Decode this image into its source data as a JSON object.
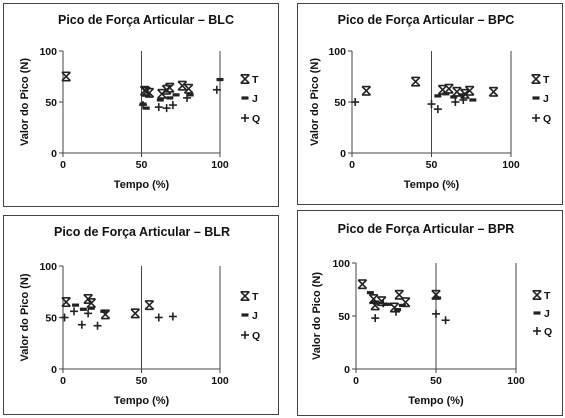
{
  "chart_data": [
    {
      "type": "scatter",
      "title": "Pico de Força Articular – BLC",
      "xlabel": "Tempo (%)",
      "ylabel": "Valor do Pico (N)",
      "xlim": [
        0,
        100
      ],
      "ylim": [
        0,
        100
      ],
      "xticks": [
        "0",
        "50",
        "100"
      ],
      "yticks": [
        "0",
        "50",
        "100"
      ],
      "legend": "right",
      "series": [
        {
          "name": "T",
          "marker": "x",
          "points": [
            [
              2,
              75
            ],
            [
              52,
              61
            ],
            [
              53,
              60
            ],
            [
              55,
              59
            ],
            [
              63,
              58
            ],
            [
              66,
              62
            ],
            [
              68,
              64
            ],
            [
              76,
              66
            ],
            [
              80,
              63
            ]
          ]
        },
        {
          "name": "J",
          "marker": "dash",
          "points": [
            [
              51,
              48
            ],
            [
              53,
              44
            ],
            [
              62,
              52
            ],
            [
              68,
              54
            ],
            [
              72,
              57
            ],
            [
              81,
              57
            ],
            [
              100,
              72
            ]
          ]
        },
        {
          "name": "Q",
          "marker": "+",
          "points": [
            [
              51,
              47
            ],
            [
              61,
              45
            ],
            [
              66,
              44
            ],
            [
              70,
              47
            ],
            [
              79,
              54
            ],
            [
              98,
              62
            ]
          ]
        }
      ]
    },
    {
      "type": "scatter",
      "title": "Pico de Força Articular – BPC",
      "xlabel": "Tempo (%)",
      "ylabel": "Valor do Pico (N)",
      "xlim": [
        0,
        100
      ],
      "ylim": [
        0,
        100
      ],
      "xticks": [
        "0",
        "50",
        "100"
      ],
      "yticks": [
        "0",
        "50",
        "100"
      ],
      "legend": "right",
      "series": [
        {
          "name": "T",
          "marker": "x",
          "points": [
            [
              9,
              61
            ],
            [
              40,
              70
            ],
            [
              57,
              62
            ],
            [
              61,
              63
            ],
            [
              66,
              60
            ],
            [
              71,
              58
            ],
            [
              74,
              61
            ],
            [
              89,
              60
            ]
          ]
        },
        {
          "name": "J",
          "marker": "dash",
          "points": [
            [
              54,
              56
            ],
            [
              59,
              58
            ],
            [
              64,
              55
            ],
            [
              69,
              57
            ],
            [
              76,
              52
            ]
          ]
        },
        {
          "name": "Q",
          "marker": "+",
          "points": [
            [
              2,
              50
            ],
            [
              50,
              48
            ],
            [
              54,
              43
            ],
            [
              65,
              50
            ],
            [
              70,
              52
            ]
          ]
        }
      ]
    },
    {
      "type": "scatter",
      "title": "Pico de Força Articular – BLR",
      "xlabel": "Tempo (%)",
      "ylabel": "Valor do Pico (N)",
      "xlim": [
        0,
        100
      ],
      "ylim": [
        0,
        100
      ],
      "xticks": [
        "0",
        "50",
        "100"
      ],
      "yticks": [
        "0",
        "50",
        "100"
      ],
      "legend": "right",
      "series": [
        {
          "name": "T",
          "marker": "x",
          "points": [
            [
              2,
              65
            ],
            [
              16,
              68
            ],
            [
              18,
              64
            ],
            [
              27,
              53
            ],
            [
              46,
              54
            ],
            [
              55,
              62
            ]
          ]
        },
        {
          "name": "J",
          "marker": "dash",
          "points": [
            [
              8,
              62
            ],
            [
              13,
              58
            ],
            [
              18,
              59
            ],
            [
              26,
              56
            ]
          ]
        },
        {
          "name": "Q",
          "marker": "+",
          "points": [
            [
              1,
              50
            ],
            [
              7,
              56
            ],
            [
              12,
              43
            ],
            [
              16,
              54
            ],
            [
              22,
              42
            ],
            [
              61,
              50
            ],
            [
              70,
              51
            ]
          ]
        }
      ]
    },
    {
      "type": "scatter",
      "title": "Pico de Força Articular – BPR",
      "xlabel": "Tempo (%)",
      "ylabel": "Valor do Pico (N)",
      "xlim": [
        0,
        100
      ],
      "ylim": [
        0,
        100
      ],
      "xticks": [
        "0",
        "50",
        "100"
      ],
      "yticks": [
        "0",
        "50",
        "100"
      ],
      "legend": "right",
      "series": [
        {
          "name": "T",
          "marker": "x",
          "points": [
            [
              4,
              80
            ],
            [
              11,
              66
            ],
            [
              12,
              60
            ],
            [
              16,
              64
            ],
            [
              24,
              58
            ],
            [
              27,
              70
            ],
            [
              31,
              63
            ],
            [
              50,
              70
            ]
          ]
        },
        {
          "name": "J",
          "marker": "dash",
          "points": [
            [
              9,
              72
            ],
            [
              12,
              63
            ],
            [
              20,
              61
            ],
            [
              26,
              56
            ],
            [
              29,
              60
            ],
            [
              51,
              67
            ]
          ]
        },
        {
          "name": "Q",
          "marker": "+",
          "points": [
            [
              12,
              48
            ],
            [
              17,
              62
            ],
            [
              25,
              54
            ],
            [
              50,
              52
            ],
            [
              56,
              46
            ]
          ]
        }
      ]
    }
  ]
}
